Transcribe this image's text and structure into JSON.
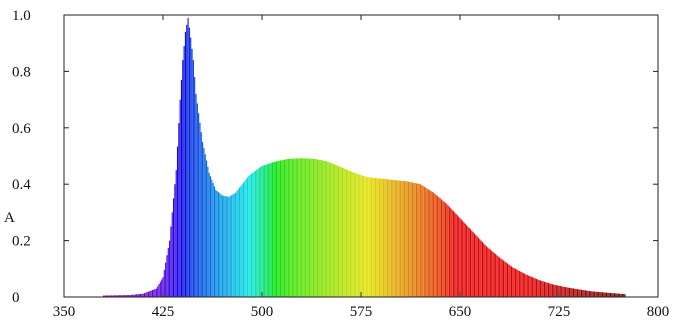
{
  "chart_data": {
    "type": "area",
    "title": "",
    "xlabel": "",
    "ylabel": "A",
    "xlim": [
      350,
      800
    ],
    "ylim": [
      0,
      1.0
    ],
    "x_ticks": [
      350,
      425,
      500,
      575,
      650,
      725,
      800
    ],
    "y_ticks": [
      0,
      0.2,
      0.4,
      0.6,
      0.8,
      1.0
    ],
    "y_tick_labels": [
      "0",
      "0.2",
      "0.4",
      "0.6",
      "0.8",
      "1.0"
    ],
    "x_tick_labels": [
      "350",
      "425",
      "500",
      "575",
      "650",
      "725",
      "800"
    ],
    "grid": false,
    "fill": "wavelength-spectrum-colors",
    "series": [
      {
        "x": [
          380,
          400,
          410,
          420,
          425,
          430,
          435,
          438,
          440,
          442,
          444,
          446,
          448,
          450,
          455,
          460,
          465,
          470,
          475,
          480,
          490,
          500,
          510,
          520,
          530,
          540,
          550,
          560,
          570,
          580,
          590,
          600,
          610,
          620,
          630,
          640,
          650,
          660,
          670,
          680,
          690,
          700,
          710,
          720,
          730,
          740,
          750,
          760,
          770,
          775
        ],
        "y": [
          0.005,
          0.007,
          0.012,
          0.03,
          0.07,
          0.2,
          0.45,
          0.7,
          0.84,
          0.94,
          0.99,
          0.92,
          0.84,
          0.72,
          0.55,
          0.44,
          0.38,
          0.36,
          0.355,
          0.37,
          0.43,
          0.465,
          0.48,
          0.49,
          0.492,
          0.49,
          0.48,
          0.46,
          0.44,
          0.425,
          0.42,
          0.415,
          0.41,
          0.4,
          0.37,
          0.33,
          0.28,
          0.23,
          0.18,
          0.14,
          0.105,
          0.08,
          0.06,
          0.045,
          0.035,
          0.027,
          0.02,
          0.016,
          0.012,
          0.01
        ]
      }
    ]
  }
}
